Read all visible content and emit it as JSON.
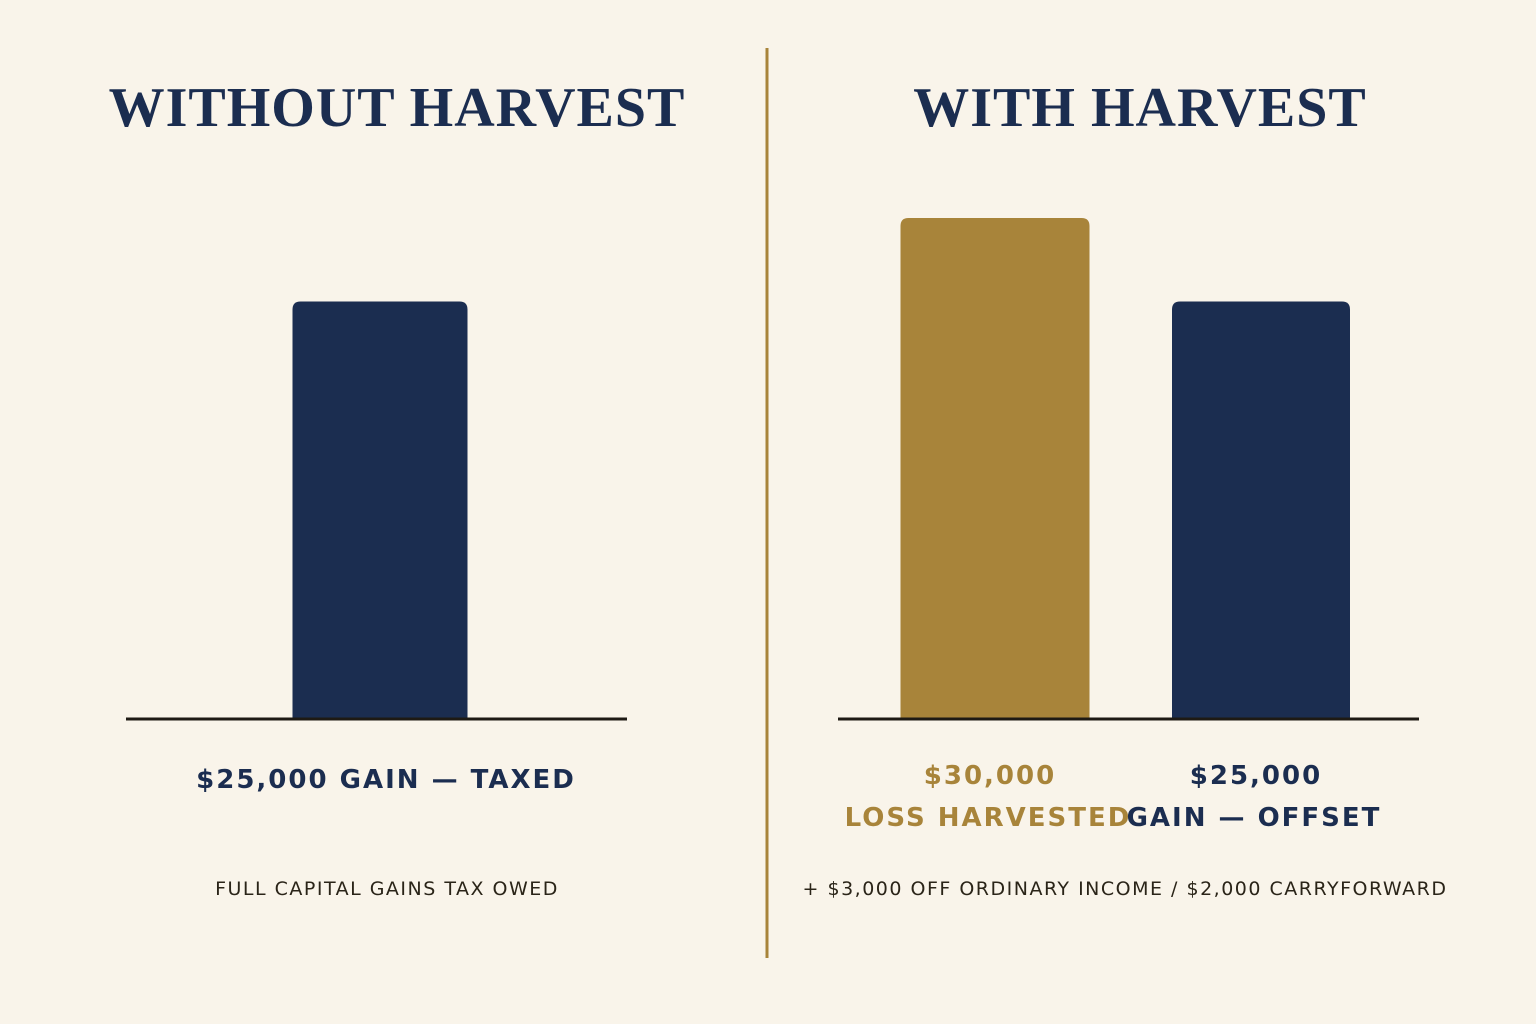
{
  "chart_data": [
    {
      "type": "bar",
      "title": "WITHOUT HARVEST",
      "categories": [
        "GAIN — TAXED"
      ],
      "values": [
        25000
      ],
      "value_labels": [
        "$25,000"
      ],
      "colors": [
        "#1b2d50"
      ],
      "note": "FULL CAPITAL GAINS TAX OWED"
    },
    {
      "type": "bar",
      "title": "WITH HARVEST",
      "categories": [
        "LOSS HARVESTED",
        "GAIN — OFFSET"
      ],
      "values": [
        30000,
        25000
      ],
      "value_labels": [
        "$30,000",
        "$25,000"
      ],
      "colors": [
        "#a8843a",
        "#1b2d50"
      ],
      "note": "+ $3,000 OFF ORDINARY INCOME / $2,000 CARRYFORWARD"
    }
  ]
}
